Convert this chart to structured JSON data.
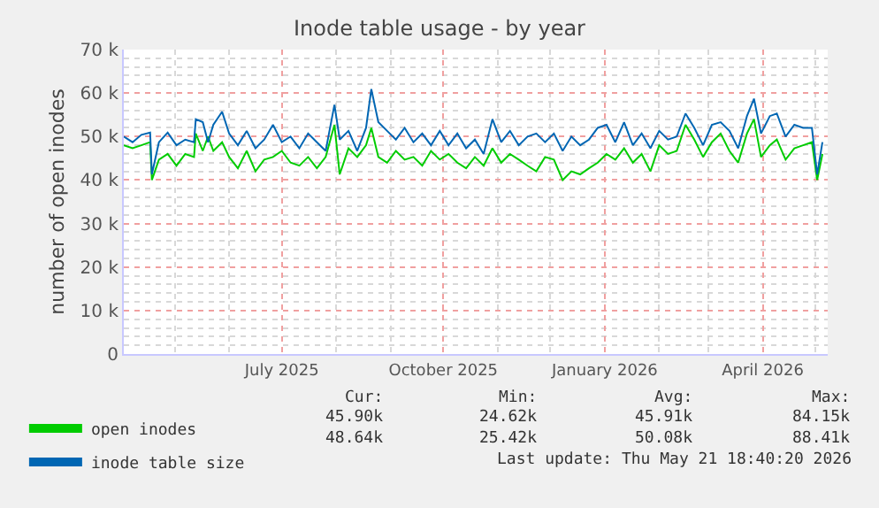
{
  "chart_data": {
    "type": "line",
    "title": "Inode table usage - by year",
    "ylabel": "number of open inodes",
    "x": [
      "2025-04-02",
      "2025-04-07",
      "2025-04-12",
      "2025-04-17",
      "2025-04-18",
      "2025-04-22",
      "2025-04-27",
      "2025-05-02",
      "2025-05-07",
      "2025-05-12",
      "2025-05-13",
      "2025-05-17",
      "2025-05-20",
      "2025-05-23",
      "2025-05-28",
      "2025-06-01",
      "2025-06-06",
      "2025-06-11",
      "2025-06-16",
      "2025-06-21",
      "2025-06-26",
      "2025-07-01",
      "2025-07-06",
      "2025-07-11",
      "2025-07-16",
      "2025-07-21",
      "2025-07-26",
      "2025-07-31",
      "2025-08-03",
      "2025-08-08",
      "2025-08-13",
      "2025-08-18",
      "2025-08-21",
      "2025-08-25",
      "2025-08-30",
      "2025-09-04",
      "2025-09-09",
      "2025-09-14",
      "2025-09-19",
      "2025-09-24",
      "2025-09-29",
      "2025-10-04",
      "2025-10-09",
      "2025-10-14",
      "2025-10-19",
      "2025-10-24",
      "2025-10-29",
      "2025-11-03",
      "2025-11-08",
      "2025-11-13",
      "2025-11-18",
      "2025-11-23",
      "2025-11-28",
      "2025-12-03",
      "2025-12-08",
      "2025-12-13",
      "2025-12-18",
      "2025-12-23",
      "2025-12-28",
      "2026-01-02",
      "2026-01-07",
      "2026-01-12",
      "2026-01-17",
      "2026-01-22",
      "2026-01-27",
      "2026-02-01",
      "2026-02-06",
      "2026-02-11",
      "2026-02-16",
      "2026-02-21",
      "2026-02-26",
      "2026-03-03",
      "2026-03-08",
      "2026-03-13",
      "2026-03-18",
      "2026-03-23",
      "2026-03-27",
      "2026-03-31",
      "2026-04-05",
      "2026-04-09",
      "2026-04-14",
      "2026-04-19",
      "2026-04-24",
      "2026-04-29",
      "2026-05-02",
      "2026-05-05"
    ],
    "series": [
      {
        "name": "open inodes",
        "color": "#00cc00",
        "values": [
          48000,
          47300,
          48000,
          48700,
          40000,
          44700,
          46000,
          43300,
          46000,
          45300,
          50700,
          46700,
          50000,
          46700,
          48700,
          45300,
          42700,
          46700,
          42000,
          44700,
          45300,
          46700,
          44000,
          43300,
          45300,
          42700,
          45300,
          52700,
          41300,
          47300,
          45300,
          48000,
          52000,
          45300,
          44000,
          46700,
          44700,
          45300,
          43300,
          46700,
          44700,
          46000,
          44000,
          42700,
          45300,
          43300,
          47300,
          44000,
          46000,
          44700,
          43300,
          42000,
          45300,
          44700,
          40000,
          42000,
          41300,
          42700,
          44000,
          46000,
          44700,
          47300,
          44000,
          46000,
          42000,
          48000,
          46000,
          46700,
          52700,
          49300,
          45300,
          48700,
          50700,
          46700,
          44000,
          50700,
          54000,
          45300,
          48000,
          49300,
          44700,
          47300,
          48000,
          48700,
          40000,
          46000
        ]
      },
      {
        "name": "inode table size",
        "color": "#0066b3",
        "values": [
          50000,
          48700,
          50400,
          50900,
          41300,
          48700,
          50900,
          48000,
          49300,
          48700,
          54000,
          53300,
          48700,
          52700,
          55700,
          50700,
          48000,
          51300,
          47300,
          49300,
          52700,
          48700,
          50000,
          47300,
          50700,
          48700,
          46700,
          57300,
          49300,
          51300,
          46700,
          52000,
          60900,
          53300,
          51300,
          49300,
          52000,
          48700,
          50700,
          48000,
          51300,
          48000,
          50700,
          47300,
          49300,
          46000,
          54000,
          48700,
          51300,
          48000,
          50000,
          50700,
          48700,
          50700,
          46700,
          50000,
          48000,
          49300,
          52000,
          52700,
          48700,
          53300,
          48000,
          50700,
          47300,
          51300,
          49300,
          50000,
          55300,
          52000,
          48000,
          52700,
          53300,
          51300,
          47300,
          54700,
          58700,
          50700,
          54700,
          55300,
          50000,
          52700,
          52000,
          52000,
          41300,
          48700
        ]
      }
    ],
    "xlim": [
      "2025-04-02",
      "2026-05-08"
    ],
    "xticks": [
      {
        "value": "2025-07-01",
        "label": "July 2025"
      },
      {
        "value": "2025-10-01",
        "label": "October 2025"
      },
      {
        "value": "2026-01-01",
        "label": "January 2026"
      },
      {
        "value": "2026-04-01",
        "label": "April 2026"
      }
    ],
    "ylim": [
      0,
      70000
    ],
    "yticks": [
      {
        "value": 0,
        "label": "0"
      },
      {
        "value": 10000,
        "label": "10 k"
      },
      {
        "value": 20000,
        "label": "20 k"
      },
      {
        "value": 30000,
        "label": "30 k"
      },
      {
        "value": 40000,
        "label": "40 k"
      },
      {
        "value": 50000,
        "label": "50 k"
      },
      {
        "value": 60000,
        "label": "60 k"
      },
      {
        "value": 70000,
        "label": "70 k"
      }
    ],
    "grid": true,
    "legend": "bottom left",
    "marker": "none",
    "line_style": "solid",
    "annotations": [
      "Cur:",
      "Min:",
      "Avg:",
      "Max:",
      "45.90k",
      "24.62k",
      "45.91k",
      "84.15k",
      "48.64k",
      "25.42k",
      "50.08k",
      "88.41k",
      "Last update: Thu May 21 18:40:20 2026"
    ]
  }
}
